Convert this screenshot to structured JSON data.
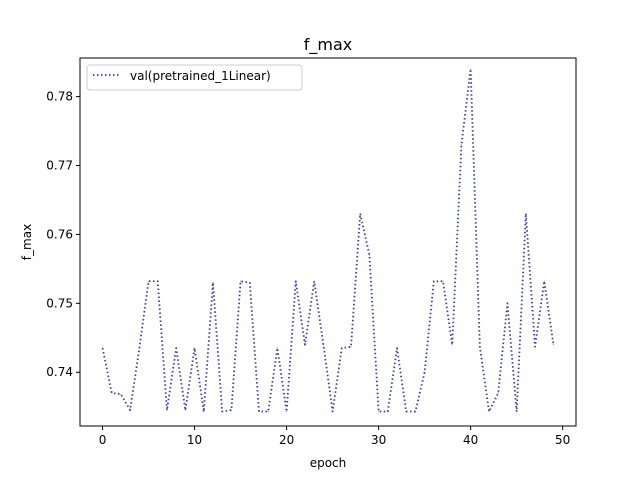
{
  "chart_data": {
    "type": "line",
    "title": "f_max",
    "xlabel": "epoch",
    "ylabel": "f_max",
    "xlim": [
      -2.45,
      51.45
    ],
    "ylim": [
      0.7322,
      0.7856
    ],
    "xticks": [
      0,
      10,
      20,
      30,
      40,
      50
    ],
    "yticks": [
      0.74,
      0.75,
      0.76,
      0.77,
      0.78
    ],
    "ytick_labels": [
      "0.74",
      "0.75",
      "0.76",
      "0.77",
      "0.78"
    ],
    "grid": false,
    "legend_position": "top-left",
    "series": [
      {
        "name": "val(pretrained_1Linear)",
        "color": "#3b3ba8",
        "linestyle": "dotted",
        "x": [
          0,
          1,
          2,
          3,
          4,
          5,
          6,
          7,
          8,
          9,
          10,
          11,
          12,
          13,
          14,
          15,
          16,
          17,
          18,
          19,
          20,
          21,
          22,
          23,
          24,
          25,
          26,
          27,
          28,
          29,
          30,
          31,
          32,
          33,
          34,
          35,
          36,
          37,
          38,
          39,
          40,
          41,
          42,
          43,
          44,
          45,
          46,
          47,
          48,
          49
        ],
        "values": [
          0.7435,
          0.737,
          0.7368,
          0.7345,
          0.7435,
          0.7532,
          0.7532,
          0.7345,
          0.7435,
          0.7345,
          0.7435,
          0.7343,
          0.753,
          0.7343,
          0.7345,
          0.7532,
          0.753,
          0.7343,
          0.7343,
          0.7435,
          0.7343,
          0.7532,
          0.744,
          0.7532,
          0.744,
          0.7343,
          0.7435,
          0.7437,
          0.763,
          0.757,
          0.7343,
          0.7343,
          0.7435,
          0.7343,
          0.7343,
          0.74,
          0.7532,
          0.7532,
          0.744,
          0.773,
          0.784,
          0.7437,
          0.7343,
          0.737,
          0.75,
          0.7343,
          0.763,
          0.7437,
          0.7532,
          0.744
        ]
      }
    ]
  }
}
